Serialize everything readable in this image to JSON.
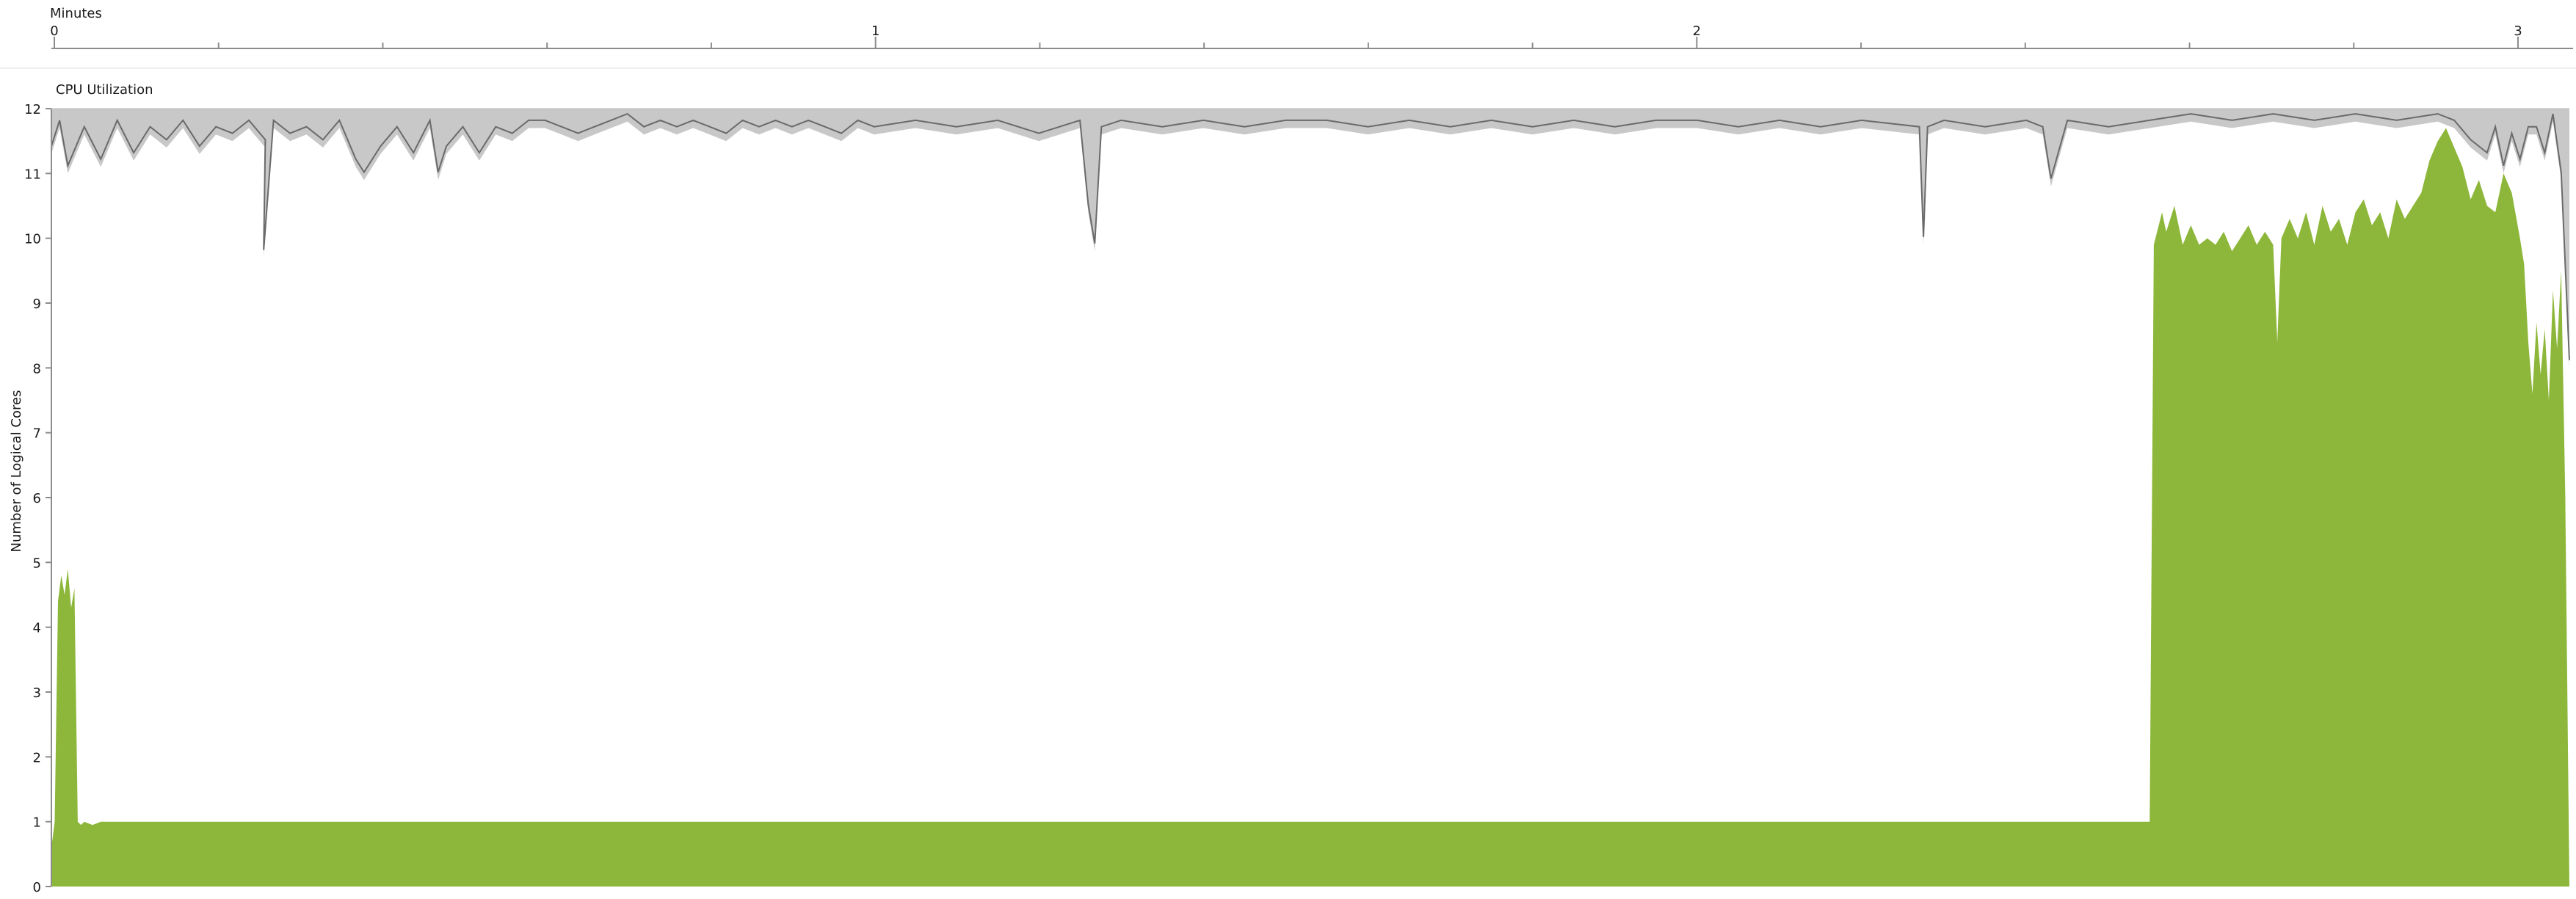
{
  "timeline": {
    "label": "Minutes",
    "ticks": [
      "0",
      "1",
      "2",
      "3"
    ]
  },
  "chart_data": {
    "type": "area",
    "title": "CPU Utilization",
    "xlabel": "Minutes",
    "ylabel": "Number of Logical Cores",
    "xlim": [
      0,
      3.06
    ],
    "ylim": [
      0,
      12
    ],
    "y_ticks": [
      "0",
      "1",
      "2",
      "3",
      "4",
      "5",
      "6",
      "7",
      "8",
      "9",
      "10",
      "11",
      "12"
    ],
    "grid": false,
    "series": [
      {
        "color": "#8db73a",
        "x": [
          0,
          0.004,
          0.008,
          0.012,
          0.016,
          0.02,
          0.024,
          0.028,
          0.032,
          0.036,
          0.04,
          0.05,
          0.06,
          0.1,
          0.3,
          0.6,
          1.0,
          1.5,
          2.0,
          2.3,
          2.5,
          2.55,
          2.555,
          2.565,
          2.57,
          2.58,
          2.59,
          2.6,
          2.61,
          2.62,
          2.63,
          2.64,
          2.65,
          2.66,
          2.67,
          2.68,
          2.69,
          2.7,
          2.705,
          2.71,
          2.72,
          2.73,
          2.74,
          2.75,
          2.76,
          2.77,
          2.78,
          2.79,
          2.8,
          2.81,
          2.82,
          2.83,
          2.84,
          2.85,
          2.86,
          2.87,
          2.88,
          2.89,
          2.9,
          2.91,
          2.92,
          2.93,
          2.94,
          2.95,
          2.96,
          2.97,
          2.98,
          2.99,
          3.0,
          3.005,
          3.01,
          3.015,
          3.02,
          3.025,
          3.03,
          3.035,
          3.04,
          3.045,
          3.05,
          3.055,
          3.06
        ],
        "y": [
          0.6,
          1.0,
          4.4,
          4.8,
          4.5,
          4.9,
          4.3,
          4.6,
          1.0,
          0.95,
          1.0,
          0.95,
          1.0,
          1.0,
          1.0,
          1.0,
          1.0,
          1.0,
          1.0,
          1.0,
          1.0,
          1.0,
          9.9,
          10.4,
          10.1,
          10.5,
          9.9,
          10.2,
          9.9,
          10.0,
          9.9,
          10.1,
          9.8,
          10.0,
          10.2,
          9.9,
          10.1,
          9.9,
          8.4,
          10.0,
          10.3,
          10.0,
          10.4,
          9.9,
          10.5,
          10.1,
          10.3,
          9.9,
          10.4,
          10.6,
          10.2,
          10.4,
          10.0,
          10.6,
          10.3,
          10.5,
          10.7,
          11.2,
          11.5,
          11.7,
          11.4,
          11.1,
          10.6,
          10.9,
          10.5,
          10.4,
          11.0,
          10.7,
          10.0,
          9.6,
          8.4,
          7.6,
          8.7,
          7.9,
          8.6,
          7.5,
          9.2,
          8.3,
          9.5,
          6.0,
          0.0
        ]
      }
    ],
    "background_series": [
      {
        "name": "",
        "color": "#c8c8c8",
        "line_color": "#6a6a6a",
        "x": [
          0,
          0.01,
          0.02,
          0.04,
          0.06,
          0.08,
          0.1,
          0.12,
          0.14,
          0.16,
          0.18,
          0.2,
          0.22,
          0.24,
          0.26,
          0.258,
          0.27,
          0.29,
          0.31,
          0.33,
          0.35,
          0.37,
          0.38,
          0.4,
          0.42,
          0.44,
          0.46,
          0.47,
          0.48,
          0.5,
          0.52,
          0.54,
          0.56,
          0.58,
          0.6,
          0.62,
          0.64,
          0.66,
          0.68,
          0.7,
          0.72,
          0.74,
          0.76,
          0.78,
          0.8,
          0.82,
          0.84,
          0.86,
          0.88,
          0.9,
          0.92,
          0.94,
          0.96,
          0.98,
          1.0,
          1.05,
          1.1,
          1.15,
          1.2,
          1.25,
          1.26,
          1.268,
          1.276,
          1.3,
          1.35,
          1.4,
          1.45,
          1.5,
          1.55,
          1.6,
          1.65,
          1.7,
          1.75,
          1.8,
          1.85,
          1.9,
          1.95,
          2.0,
          2.05,
          2.1,
          2.15,
          2.2,
          2.27,
          2.275,
          2.28,
          2.3,
          2.35,
          2.4,
          2.42,
          2.43,
          2.45,
          2.5,
          2.55,
          2.6,
          2.65,
          2.7,
          2.75,
          2.8,
          2.85,
          2.9,
          2.92,
          2.94,
          2.96,
          2.97,
          2.98,
          2.99,
          3.0,
          3.01,
          3.02,
          3.03,
          3.04,
          3.05,
          3.06
        ],
        "y": [
          11.3,
          11.7,
          11.0,
          11.6,
          11.1,
          11.7,
          11.2,
          11.6,
          11.4,
          11.7,
          11.3,
          11.6,
          11.5,
          11.7,
          11.4,
          9.7,
          11.7,
          11.5,
          11.6,
          11.4,
          11.7,
          11.1,
          10.9,
          11.3,
          11.6,
          11.2,
          11.7,
          10.9,
          11.3,
          11.6,
          11.2,
          11.6,
          11.5,
          11.7,
          11.7,
          11.6,
          11.5,
          11.6,
          11.7,
          11.8,
          11.6,
          11.7,
          11.6,
          11.7,
          11.6,
          11.5,
          11.7,
          11.6,
          11.7,
          11.6,
          11.7,
          11.6,
          11.5,
          11.7,
          11.6,
          11.7,
          11.6,
          11.7,
          11.5,
          11.7,
          10.4,
          9.8,
          11.6,
          11.7,
          11.6,
          11.7,
          11.6,
          11.7,
          11.7,
          11.6,
          11.7,
          11.6,
          11.7,
          11.6,
          11.7,
          11.6,
          11.7,
          11.7,
          11.6,
          11.7,
          11.6,
          11.7,
          11.6,
          9.9,
          11.6,
          11.7,
          11.6,
          11.7,
          11.6,
          10.8,
          11.7,
          11.6,
          11.7,
          11.8,
          11.7,
          11.8,
          11.7,
          11.8,
          11.7,
          11.8,
          11.7,
          11.4,
          11.2,
          11.6,
          11.0,
          11.5,
          11.1,
          11.6,
          11.6,
          11.2,
          11.8,
          10.9,
          8.0
        ]
      }
    ]
  }
}
